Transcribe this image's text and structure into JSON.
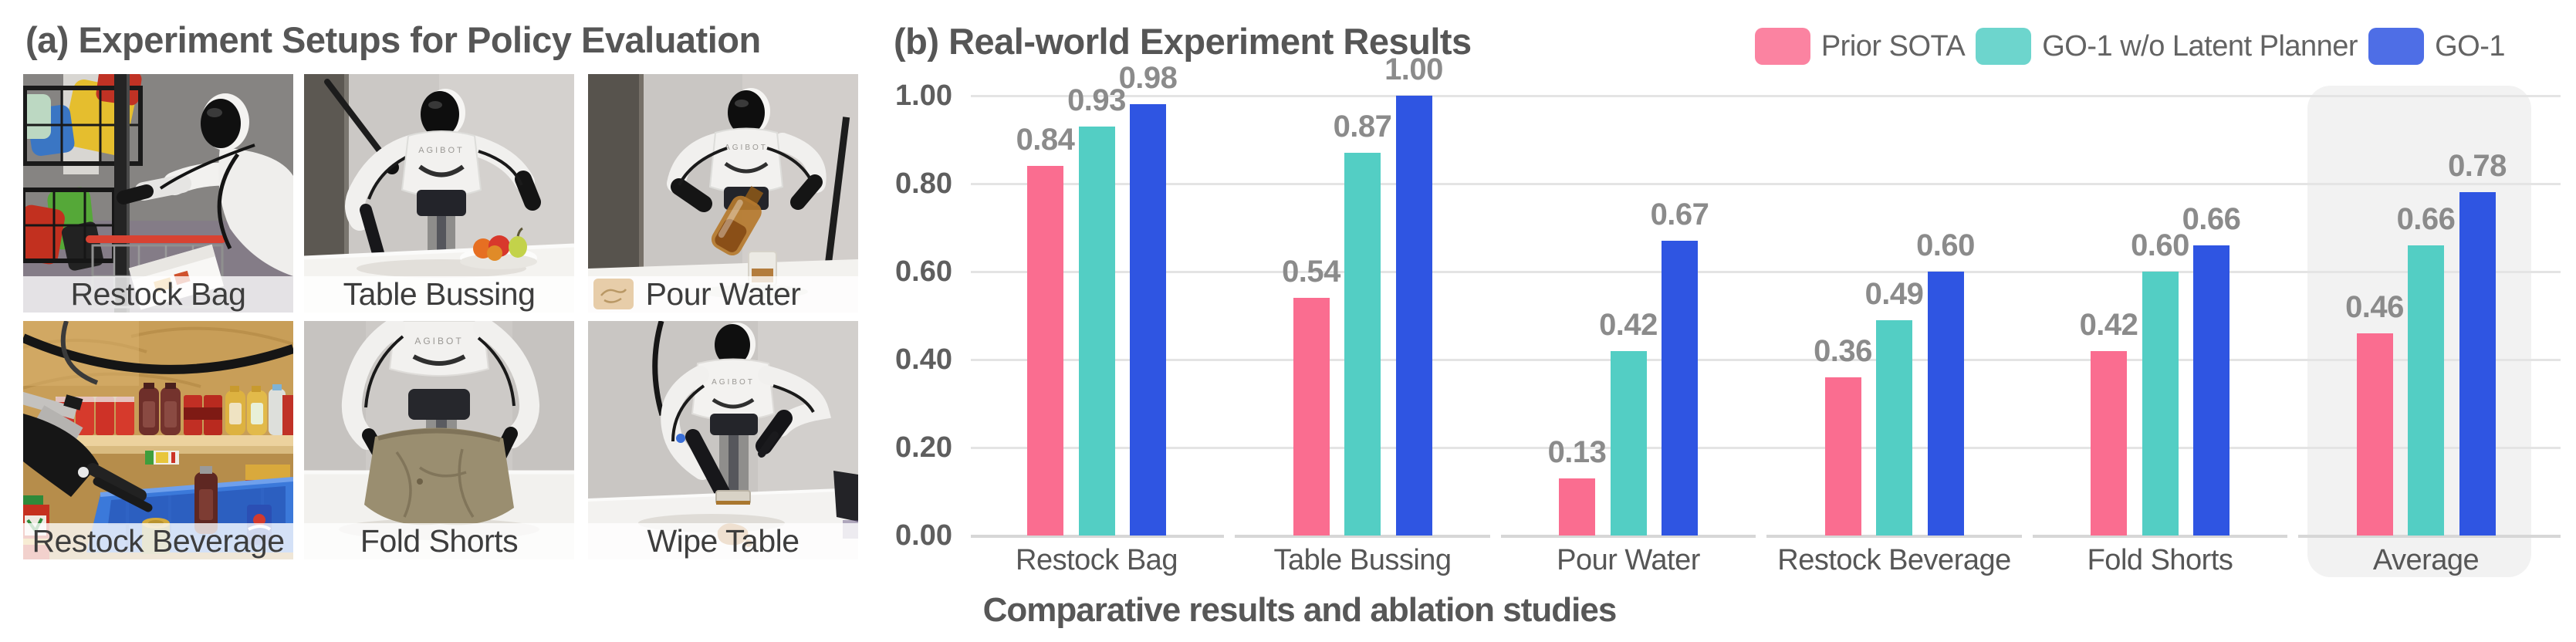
{
  "panel_a": {
    "title": "(a) Experiment Setups for Policy Evaluation",
    "robot_brand": "AGIBOT",
    "tiles": [
      {
        "label": "Restock Bag"
      },
      {
        "label": "Table Bussing"
      },
      {
        "label": "Pour Water",
        "has_logo_patch": true
      },
      {
        "label": "Restock Beverage"
      },
      {
        "label": "Fold Shorts"
      },
      {
        "label": "Wipe Table"
      }
    ]
  },
  "panel_b": {
    "title": "(b) Real-world Experiment Results",
    "caption": "Comparative results and ablation studies"
  },
  "chart_data": {
    "type": "bar",
    "title": "(b) Real-world Experiment Results",
    "categories": [
      "Restock Bag",
      "Table Bussing",
      "Pour Water",
      "Restock Beverage",
      "Fold Shorts",
      "Average"
    ],
    "series": [
      {
        "name": "Prior SOTA",
        "color": "#FA6D90",
        "values": [
          0.84,
          0.54,
          0.13,
          0.36,
          0.42,
          0.46
        ]
      },
      {
        "name": "GO-1 w/o Latent Planner",
        "color": "#53CEC4",
        "values": [
          0.93,
          0.87,
          0.42,
          0.49,
          0.6,
          0.66
        ]
      },
      {
        "name": "GO-1",
        "color": "#2F55E2",
        "values": [
          0.98,
          1.0,
          0.67,
          0.6,
          0.66,
          0.78
        ]
      }
    ],
    "ylim": [
      0,
      1.0
    ],
    "yticks": [
      0.0,
      0.2,
      0.4,
      0.6,
      0.8,
      1.0
    ],
    "grid": true,
    "legend_position": "top-right",
    "value_labels": true,
    "highlighted_category": "Average",
    "colors": {
      "gridline": "#e4e4e4",
      "baseline": "#d7d7d7",
      "highlight_bg": "#f2f2f2",
      "tick_text": "#5e5e5e",
      "value_text": "#8b8b8b",
      "category_text": "#565656"
    }
  }
}
